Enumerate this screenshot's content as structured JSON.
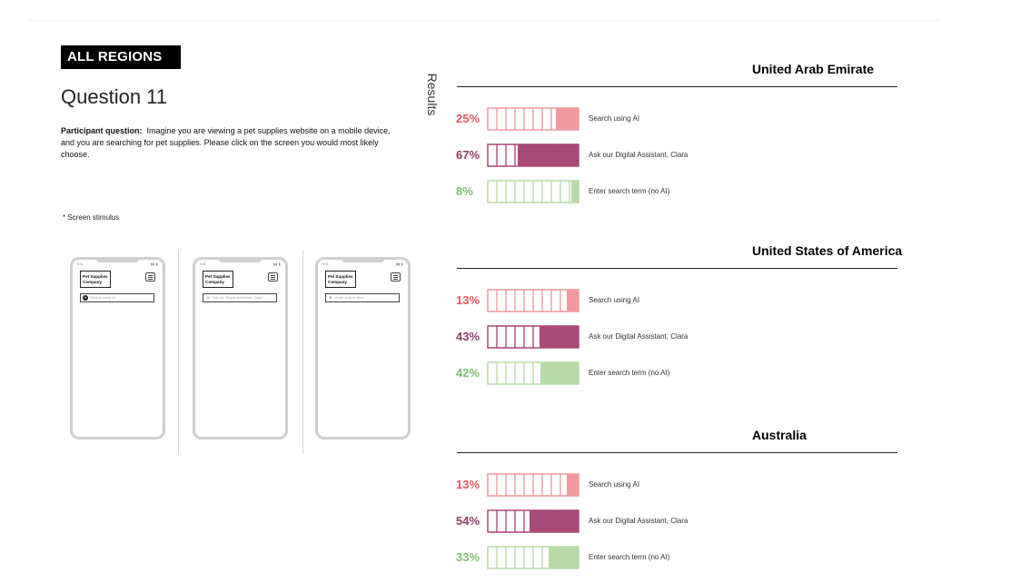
{
  "header": {
    "region_tag": "ALL REGIONS",
    "question_title": "Question 11",
    "question_label": "Participant question:",
    "question_text": "Imagine you are viewing a pet supplies website on a mobile device, and you are searching for pet supplies. Please click on the screen you would most likely choose.",
    "stimulus_note": "* Screen stimulus",
    "results_label": "Results"
  },
  "phones": [
    {
      "logo_line1": "Pet Supplies",
      "logo_line2": "Company",
      "search_placeholder": "Search using AI",
      "search_icon": "ai-badge-icon"
    },
    {
      "logo_line1": "Pet Supplies",
      "logo_line2": "Company",
      "search_placeholder": "Ask our Digital Assistant, Clara",
      "search_icon": "assistant-avatar-icon"
    },
    {
      "logo_line1": "Pet Supplies",
      "logo_line2": "Company",
      "search_placeholder": "Enter search term",
      "search_icon": "magnifier-icon"
    }
  ],
  "chart_data": [
    {
      "type": "bar",
      "title": "United Arab Emirate",
      "categories": [
        "Search using AI",
        "Ask our Digital Assistant, Clara",
        "Enter search term (no AI)"
      ],
      "values": [
        25,
        67,
        8
      ],
      "value_labels": [
        "25%",
        "67%",
        "8%"
      ],
      "colors": [
        "#ee9a9c",
        "#a94978",
        "#b7dba8"
      ],
      "text_colors": [
        "#e05a62",
        "#8e3c66",
        "#7fbf6e"
      ],
      "ylim": [
        0,
        100
      ]
    },
    {
      "type": "bar",
      "title": "United States of America",
      "categories": [
        "Search using AI",
        "Ask our Digital Assistant, Clara",
        "Enter search term (no AI)"
      ],
      "values": [
        13,
        43,
        42
      ],
      "value_labels": [
        "13%",
        "43%",
        "42%"
      ],
      "colors": [
        "#ee9a9c",
        "#a94978",
        "#b7dba8"
      ],
      "text_colors": [
        "#e05a62",
        "#8e3c66",
        "#7fbf6e"
      ],
      "ylim": [
        0,
        100
      ]
    },
    {
      "type": "bar",
      "title": "Australia",
      "categories": [
        "Search using AI",
        "Ask our Digital Assistant, Clara",
        "Enter search term (no AI)"
      ],
      "values": [
        13,
        54,
        33
      ],
      "value_labels": [
        "13%",
        "54%",
        "33%"
      ],
      "colors": [
        "#ee9a9c",
        "#a94978",
        "#b7dba8"
      ],
      "text_colors": [
        "#e05a62",
        "#8e3c66",
        "#7fbf6e"
      ],
      "ylim": [
        0,
        100
      ]
    }
  ]
}
